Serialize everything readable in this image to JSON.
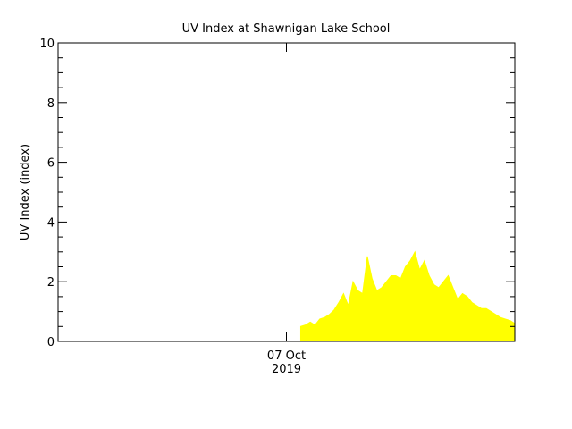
{
  "chart_data": {
    "type": "area",
    "title": "UV Index at Shawnigan Lake School",
    "y_label": "UV Index (index)",
    "color": "#ffff00",
    "xlim": [
      -24,
      24
    ],
    "xticks": [
      {
        "value": 0,
        "label": "07 Oct",
        "sublabel": "2019"
      }
    ],
    "ylim": [
      0,
      10
    ],
    "yticks": [
      0,
      2,
      4,
      6,
      8,
      10
    ],
    "yminorticks": [
      0.5,
      1,
      1.5,
      2.5,
      3,
      3.5,
      4.5,
      5,
      5.5,
      6.5,
      7,
      7.5,
      8.5,
      9,
      9.5
    ],
    "x": [
      1.5,
      2,
      2.5,
      3,
      3.5,
      4,
      4.5,
      5,
      5.5,
      6,
      6.5,
      7,
      7.5,
      8,
      8.5,
      9,
      9.5,
      10,
      10.5,
      11,
      11.5,
      12,
      12.5,
      13,
      13.5,
      14,
      14.5,
      15,
      15.5,
      16,
      16.5,
      17,
      17.5,
      18,
      18.5,
      19,
      19.5,
      20,
      20.5,
      21,
      21.5,
      22,
      22.5,
      23,
      23.5,
      24
    ],
    "values": [
      0.5,
      0.55,
      0.65,
      0.55,
      0.75,
      0.8,
      0.9,
      1.05,
      1.3,
      1.6,
      1.2,
      2.0,
      1.7,
      1.6,
      2.85,
      2.1,
      1.7,
      1.8,
      2.0,
      2.2,
      2.2,
      2.1,
      2.5,
      2.7,
      3.0,
      2.4,
      2.7,
      2.2,
      1.9,
      1.8,
      2.0,
      2.2,
      1.8,
      1.4,
      1.6,
      1.5,
      1.3,
      1.2,
      1.1,
      1.1,
      1.0,
      0.9,
      0.8,
      0.75,
      0.7,
      0.6
    ]
  }
}
